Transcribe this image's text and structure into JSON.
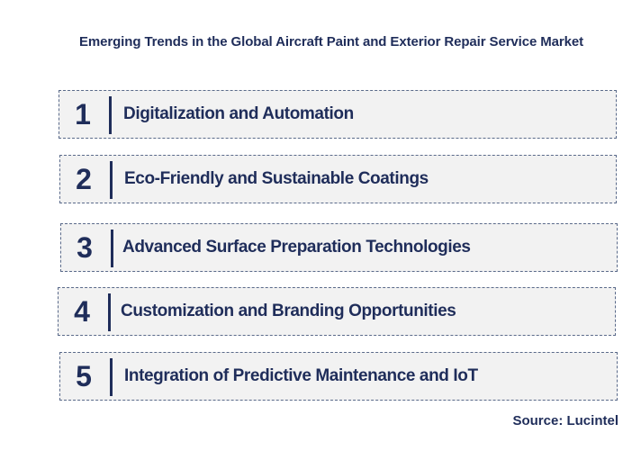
{
  "title": "Emerging Trends in the Global Aircraft Paint and Exterior Repair Service Market",
  "trends": [
    {
      "number": "1",
      "label": "Digitalization and Automation"
    },
    {
      "number": "2",
      "label": "Eco-Friendly and Sustainable Coatings"
    },
    {
      "number": "3",
      "label": "Advanced Surface Preparation Technologies"
    },
    {
      "number": "4",
      "label": "Customization and Branding Opportunities"
    },
    {
      "number": "5",
      "label": "Integration of Predictive Maintenance and IoT"
    }
  ],
  "source": "Source: Lucintel",
  "colors": {
    "text": "#1f2d5a",
    "box_fill": "#f2f2f2",
    "box_border": "#5a6a8a"
  }
}
